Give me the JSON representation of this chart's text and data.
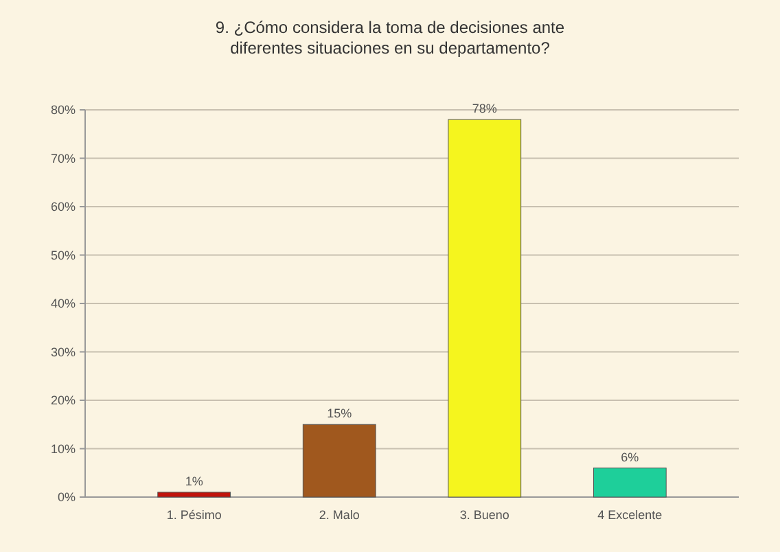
{
  "chart_data": {
    "type": "bar",
    "title": "9. ¿Cómo considera la toma de decisiones ante diferentes situaciones en su departamento?",
    "categories": [
      "1. Pésimo",
      "2. Malo",
      "3. Bueno",
      "4 Excelente"
    ],
    "values": [
      1,
      15,
      78,
      6
    ],
    "colors": [
      "#c0140c",
      "#a0581e",
      "#f5f51e",
      "#1ecf9a"
    ],
    "value_labels": [
      "1%",
      "15%",
      "78%",
      "6%"
    ],
    "ylim": [
      0,
      80
    ],
    "yticks": [
      {
        "value": 0,
        "label": "0%"
      },
      {
        "value": 10,
        "label": "10%"
      },
      {
        "value": 20,
        "label": "20%"
      },
      {
        "value": 30,
        "label": "30%"
      },
      {
        "value": 40,
        "label": "40%"
      },
      {
        "value": 50,
        "label": "50%"
      },
      {
        "value": 60,
        "label": "60%"
      },
      {
        "value": 70,
        "label": "70%"
      },
      {
        "value": 80,
        "label": "80%"
      }
    ],
    "grid": "y"
  }
}
